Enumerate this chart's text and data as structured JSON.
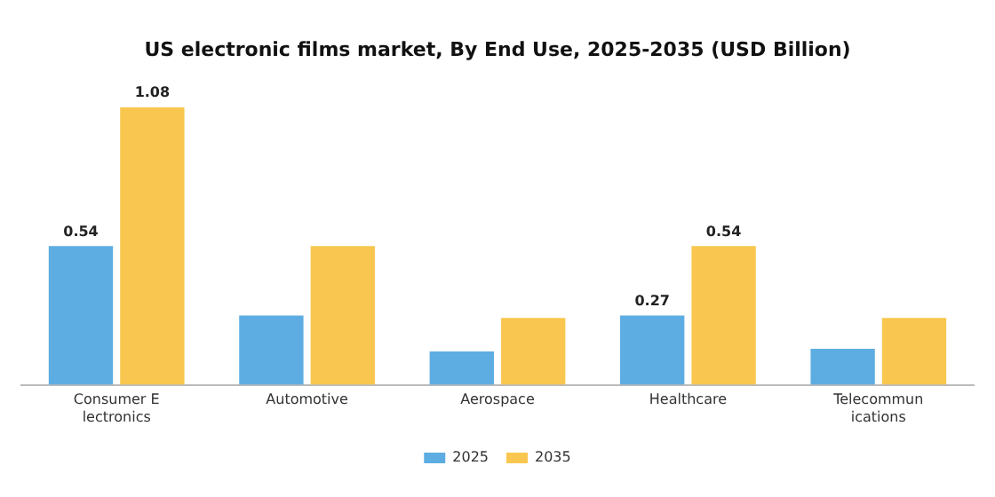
{
  "chart_data": {
    "type": "bar",
    "title": "US electronic films market, By End Use, 2025-2035 (USD Billion)",
    "categories": [
      "Consumer Electronics",
      "Automotive",
      "Aerospace",
      "Healthcare",
      "Telecommunications"
    ],
    "series": [
      {
        "name": "2025",
        "color": "#5dade2",
        "values": [
          0.54,
          0.27,
          0.13,
          0.27,
          0.14
        ],
        "value_labels": [
          "0.54",
          null,
          null,
          "0.27",
          null
        ]
      },
      {
        "name": "2035",
        "color": "#f9c74f",
        "values": [
          1.08,
          0.54,
          0.26,
          0.54,
          0.26
        ],
        "value_labels": [
          "1.08",
          null,
          null,
          "0.54",
          null
        ]
      }
    ],
    "legend": "bottom",
    "grid": false
  }
}
